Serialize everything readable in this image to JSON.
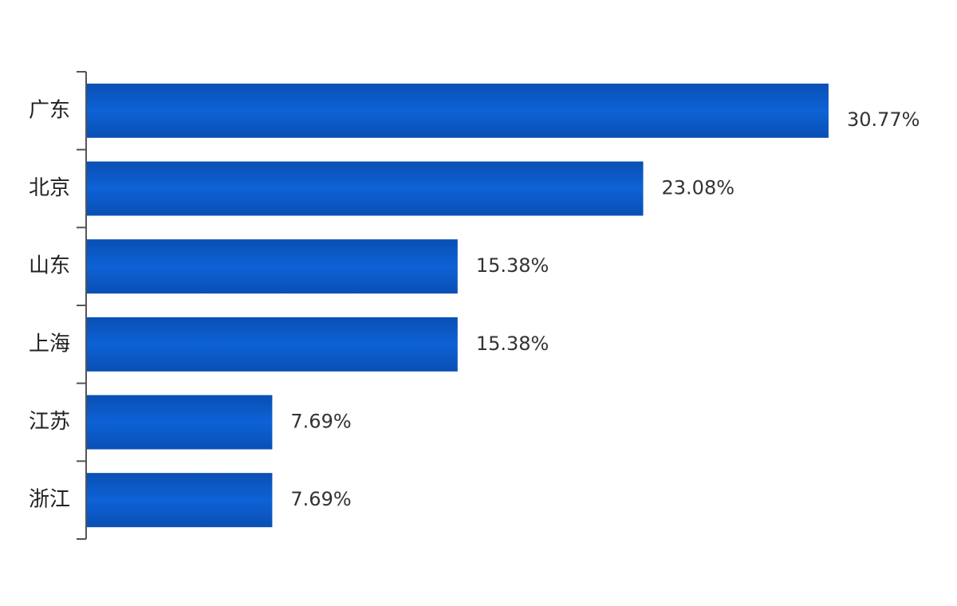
{
  "chart_data": {
    "type": "bar",
    "orientation": "horizontal",
    "categories": [
      "广东",
      "北京",
      "山东",
      "上海",
      "江苏",
      "浙江"
    ],
    "values": [
      30.77,
      23.08,
      15.38,
      15.38,
      7.69,
      7.69
    ],
    "value_labels": [
      "30.77%",
      "23.08%",
      "15.38%",
      "15.38%",
      "7.69%",
      "7.69%"
    ],
    "unit": "%",
    "xlim": [
      0,
      31.5
    ],
    "grid": false,
    "legend": "none",
    "bar_color": "#0a4fb4",
    "bar_highlight_color": "#0d62d6"
  }
}
